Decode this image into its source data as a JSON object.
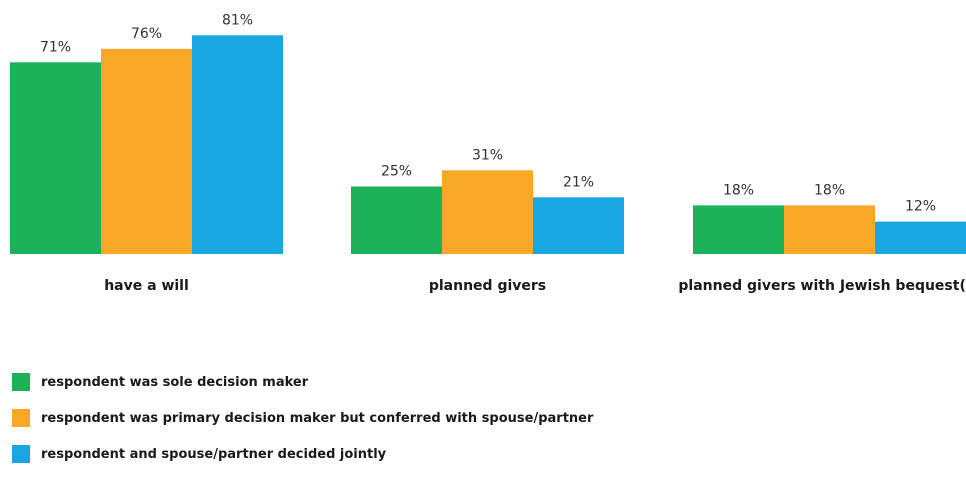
{
  "chart_data": {
    "type": "bar",
    "categories": [
      "have a will",
      "planned givers",
      "planned givers with Jewish bequest(s)"
    ],
    "series": [
      {
        "name": "respondent was sole decision maker",
        "values": [
          71,
          25,
          18
        ],
        "labels": [
          "71%",
          "25%",
          "18%"
        ],
        "color": "#1db15a"
      },
      {
        "name": "respondent was primary decision maker but conferred with spouse/partner",
        "values": [
          76,
          31,
          18
        ],
        "labels": [
          "76%",
          "31%",
          "18%"
        ],
        "color": "#f9a727"
      },
      {
        "name": "respondent and spouse/partner decided jointly",
        "values": [
          81,
          21,
          12
        ],
        "labels": [
          "81%",
          "21%",
          "12%"
        ],
        "color": "#1aa7e1"
      }
    ],
    "ylim": [
      0,
      100
    ],
    "unit": "%",
    "grid": false,
    "legend_position": "bottom-left"
  }
}
